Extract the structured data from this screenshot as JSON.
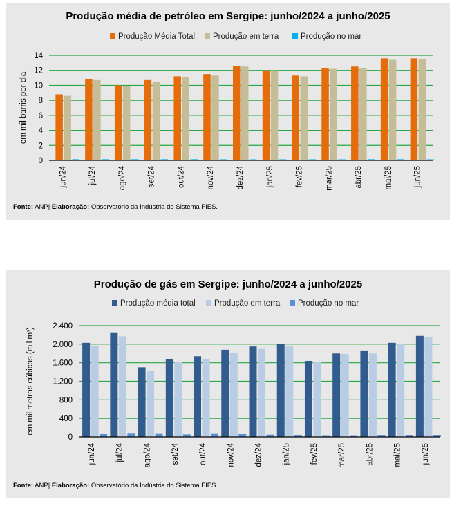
{
  "charts": {
    "oil": {
      "title": "Produção média de petróleo em Sergipe: junho/2024 a junho/2025",
      "source_label": "Fonte:",
      "source_text": "ANP|",
      "elab_label": "Elaboração:",
      "elab_text": "Observatório da Indústria do Sistema FIES."
    },
    "gas": {
      "title": "Produção de gás em Sergipe: junho/2024 a junho/2025",
      "source_label": "Fonte:",
      "source_text": "ANP|",
      "elab_label": "Elaboração:",
      "elab_text": "Observatório da Indústria do Sistema FIES."
    }
  },
  "chart_data": [
    {
      "type": "bar",
      "id": "oil",
      "title": "Produção média de petróleo em Sergipe: junho/2024 a junho/2025",
      "ylabel": "em mil barris por dia",
      "xlabel": "",
      "ylim": [
        0,
        14
      ],
      "yticks": [
        0,
        2,
        4,
        6,
        8,
        10,
        12,
        14
      ],
      "ytick_labels": [
        "0",
        "2",
        "4",
        "6",
        "8",
        "10",
        "12",
        "14"
      ],
      "grid": true,
      "legend_position": "top",
      "categories": [
        "jun/24",
        "jul/24",
        "ago/24",
        "set/24",
        "out/24",
        "nov/24",
        "dez/24",
        "jan/25",
        "fev/25",
        "mar/25",
        "abr/25",
        "mai/25",
        "jun/25"
      ],
      "series": [
        {
          "name": "Produção Média Total",
          "color": "#e46c0a",
          "values": [
            8.8,
            10.8,
            10.0,
            10.7,
            11.2,
            11.5,
            12.6,
            12.0,
            11.3,
            12.3,
            12.5,
            13.6,
            13.6
          ]
        },
        {
          "name": "Produção em terra",
          "color": "#c4bd97",
          "values": [
            8.6,
            10.7,
            9.9,
            10.5,
            11.1,
            11.3,
            12.5,
            12.0,
            11.2,
            12.2,
            12.3,
            13.4,
            13.5
          ]
        },
        {
          "name": "Produção no mar",
          "color": "#00b0f0",
          "values": [
            0.15,
            0.15,
            0.15,
            0.15,
            0.15,
            0.1,
            0.1,
            0.1,
            0.1,
            0.1,
            0.15,
            0.15,
            0.1
          ]
        }
      ]
    },
    {
      "type": "bar",
      "id": "gas",
      "title": "Produção de gás em Sergipe: junho/2024 a junho/2025",
      "ylabel": "em mil metros cúbicos (mil m³)",
      "xlabel": "",
      "ylim": [
        0,
        2400
      ],
      "yticks": [
        0,
        400,
        800,
        1200,
        1600,
        2000,
        2400
      ],
      "ytick_labels": [
        "0",
        "400",
        "800",
        "1.200",
        "1.600",
        "2.000",
        "2.400"
      ],
      "grid": true,
      "legend_position": "top",
      "categories": [
        "jun/24",
        "jul/24",
        "ago/24",
        "set/24",
        "out/24",
        "nov/24",
        "dez/24",
        "jan/25",
        "fev/25",
        "mar/25",
        "abr/25",
        "mai/25",
        "jun/25"
      ],
      "series": [
        {
          "name": "Produção média total",
          "color": "#335c8e",
          "values": [
            2030,
            2240,
            1500,
            1670,
            1740,
            1880,
            1950,
            2010,
            1640,
            1800,
            1850,
            2030,
            2180
          ]
        },
        {
          "name": "Produção em terra",
          "color": "#b8cce4",
          "values": [
            1970,
            2170,
            1430,
            1610,
            1680,
            1820,
            1900,
            1960,
            1620,
            1790,
            1800,
            2000,
            2150
          ]
        },
        {
          "name": "Produção no mar",
          "color": "#5b8fd6",
          "values": [
            60,
            70,
            65,
            55,
            65,
            60,
            50,
            45,
            20,
            15,
            45,
            35,
            30
          ]
        }
      ]
    }
  ]
}
